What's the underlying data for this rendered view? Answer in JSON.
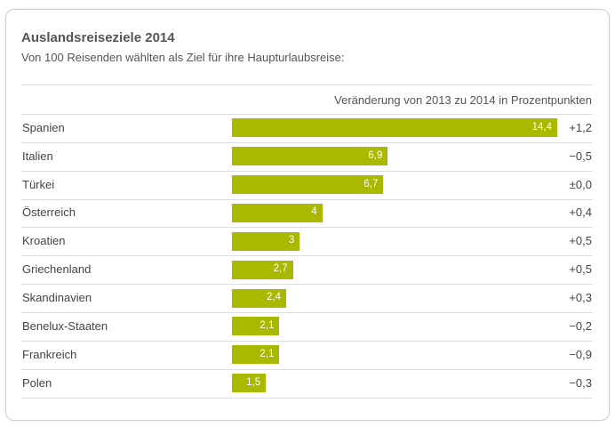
{
  "title": "Auslandsreiseziele 2014",
  "subtitle": "Von 100 Reisenden wählten als Ziel für ihre Haupturlaubsreise:",
  "change_header": "Veränderung von 2013 zu 2014 in Prozentpunkten",
  "colors": {
    "bar": "#a8b900",
    "text": "#444444",
    "rule": "#dddddd"
  },
  "chart_data": {
    "type": "bar",
    "orientation": "horizontal",
    "title": "Auslandsreiseziele 2014",
    "subtitle": "Von 100 Reisenden wählten als Ziel für ihre Haupturlaubsreise:",
    "categories": [
      "Spanien",
      "Italien",
      "Türkei",
      "Österreich",
      "Kroatien",
      "Griechenland",
      "Skandinavien",
      "Benelux-Staaten",
      "Frankreich",
      "Polen"
    ],
    "values": [
      14.4,
      6.9,
      6.7,
      4,
      3,
      2.7,
      2.4,
      2.1,
      2.1,
      1.5
    ],
    "value_labels": [
      "14,4",
      "6,9",
      "6,7",
      "4",
      "3",
      "2,7",
      "2,4",
      "2,1",
      "2,1",
      "1,5"
    ],
    "changes": [
      "+1,2",
      "−0,5",
      "±0,0",
      "+0,4",
      "+0,5",
      "+0,5",
      "+0,3",
      "−0,2",
      "−0,9",
      "−0,3"
    ],
    "change_header": "Veränderung von 2013 zu 2014 in Prozentpunkten",
    "xlim": [
      0,
      14.4
    ],
    "grid": false,
    "legend": "none"
  }
}
